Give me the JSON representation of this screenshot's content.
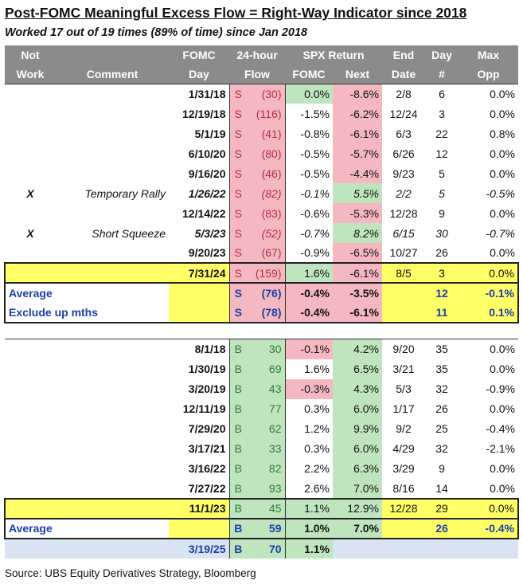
{
  "title": "Post-FOMC Meaningful Excess Flow = Right-Way Indicator since 2018",
  "subtitle": "Worked 17 out of 19 times (89% of time) since Jan 2018",
  "headers": {
    "row1": {
      "not": "Not",
      "comment": "",
      "fomc": "FOMC",
      "flow": "24-hour",
      "spx": "SPX Return",
      "end": "End",
      "day": "Day",
      "max": "Max"
    },
    "row2": {
      "not": "Work",
      "comment": "Comment",
      "fomc": "Day",
      "flow": "Flow",
      "spx_fomc": "FOMC",
      "spx_next": "Next",
      "end": "Date",
      "day": "#",
      "max": "Opp"
    }
  },
  "sell_rows": [
    {
      "not": "",
      "comment": "",
      "day": "1/31/18",
      "flag": "S",
      "flow": "(30)",
      "fomc": "0.0%",
      "next": "-8.6%",
      "end": "2/8",
      "dn": "6",
      "opp": "0.0%"
    },
    {
      "not": "",
      "comment": "",
      "day": "12/19/18",
      "flag": "S",
      "flow": "(116)",
      "fomc": "-1.5%",
      "next": "-6.2%",
      "end": "12/24",
      "dn": "3",
      "opp": "0.0%"
    },
    {
      "not": "",
      "comment": "",
      "day": "5/1/19",
      "flag": "S",
      "flow": "(41)",
      "fomc": "-0.8%",
      "next": "-6.1%",
      "end": "6/3",
      "dn": "22",
      "opp": "0.8%"
    },
    {
      "not": "",
      "comment": "",
      "day": "6/10/20",
      "flag": "S",
      "flow": "(80)",
      "fomc": "-0.5%",
      "next": "-5.7%",
      "end": "6/26",
      "dn": "12",
      "opp": "0.0%"
    },
    {
      "not": "",
      "comment": "",
      "day": "9/16/20",
      "flag": "S",
      "flow": "(46)",
      "fomc": "-0.5%",
      "next": "-4.4%",
      "end": "9/23",
      "dn": "5",
      "opp": "0.0%"
    },
    {
      "not": "X",
      "comment": "Temporary Rally",
      "day": "1/26/22",
      "flag": "S",
      "flow": "(82)",
      "fomc": "-0.1%",
      "next": "5.5%",
      "end": "2/2",
      "dn": "5",
      "opp": "-0.5%"
    },
    {
      "not": "",
      "comment": "",
      "day": "12/14/22",
      "flag": "S",
      "flow": "(83)",
      "fomc": "-0.6%",
      "next": "-5.3%",
      "end": "12/28",
      "dn": "9",
      "opp": "0.0%"
    },
    {
      "not": "X",
      "comment": "Short Squeeze",
      "day": "5/3/23",
      "flag": "S",
      "flow": "(52)",
      "fomc": "-0.7%",
      "next": "8.2%",
      "end": "6/15",
      "dn": "30",
      "opp": "-0.7%"
    },
    {
      "not": "",
      "comment": "",
      "day": "9/20/23",
      "flag": "S",
      "flow": "(67)",
      "fomc": "-0.9%",
      "next": "-6.5%",
      "end": "10/27",
      "dn": "26",
      "opp": "0.0%"
    },
    {
      "not": "",
      "comment": "",
      "day": "7/31/24",
      "flag": "S",
      "flow": "(159)",
      "fomc": "1.6%",
      "next": "-6.1%",
      "end": "8/5",
      "dn": "3",
      "opp": "0.0%"
    }
  ],
  "sell_avg": {
    "label": "Average",
    "flag": "S",
    "flow": "(76)",
    "fomc": "-0.4%",
    "next": "-3.5%",
    "dn": "12",
    "opp": "-0.1%"
  },
  "sell_excl": {
    "label": "Exclude up mths",
    "flag": "S",
    "flow": "(78)",
    "fomc": "-0.4%",
    "next": "-6.1%",
    "dn": "11",
    "opp": "0.1%"
  },
  "buy_rows": [
    {
      "day": "8/1/18",
      "flag": "B",
      "flow": "30",
      "fomc": "-0.1%",
      "next": "4.2%",
      "end": "9/20",
      "dn": "35",
      "opp": "0.0%"
    },
    {
      "day": "1/30/19",
      "flag": "B",
      "flow": "69",
      "fomc": "1.6%",
      "next": "6.5%",
      "end": "3/21",
      "dn": "35",
      "opp": "0.0%"
    },
    {
      "day": "3/20/19",
      "flag": "B",
      "flow": "43",
      "fomc": "-0.3%",
      "next": "4.3%",
      "end": "5/3",
      "dn": "32",
      "opp": "-0.9%"
    },
    {
      "day": "12/11/19",
      "flag": "B",
      "flow": "77",
      "fomc": "0.3%",
      "next": "6.0%",
      "end": "1/17",
      "dn": "26",
      "opp": "0.0%"
    },
    {
      "day": "7/29/20",
      "flag": "B",
      "flow": "62",
      "fomc": "1.2%",
      "next": "9.9%",
      "end": "9/2",
      "dn": "25",
      "opp": "-0.4%"
    },
    {
      "day": "3/17/21",
      "flag": "B",
      "flow": "33",
      "fomc": "0.3%",
      "next": "6.0%",
      "end": "4/29",
      "dn": "32",
      "opp": "-2.1%"
    },
    {
      "day": "3/16/22",
      "flag": "B",
      "flow": "82",
      "fomc": "2.2%",
      "next": "6.3%",
      "end": "3/29",
      "dn": "9",
      "opp": "0.0%"
    },
    {
      "day": "7/27/22",
      "flag": "B",
      "flow": "93",
      "fomc": "2.6%",
      "next": "7.0%",
      "end": "8/16",
      "dn": "14",
      "opp": "0.0%"
    },
    {
      "day": "11/1/23",
      "flag": "B",
      "flow": "45",
      "fomc": "1.1%",
      "next": "12.9%",
      "end": "12/28",
      "dn": "29",
      "opp": "0.0%"
    }
  ],
  "buy_avg": {
    "label": "Average",
    "flag": "B",
    "flow": "59",
    "fomc": "1.0%",
    "next": "7.0%",
    "dn": "26",
    "opp": "-0.4%"
  },
  "buy_last": {
    "day": "3/19/25",
    "flag": "B",
    "flow": "70",
    "fomc": "1.1%"
  },
  "source": "Source: UBS Equity Derivatives Strategy, Bloomberg",
  "colors": {
    "header_gray": "#8b8b8b",
    "sell_pink": "#f5b8c1",
    "buy_green": "#bfe5bf",
    "highlight_yellow": "#ffff66",
    "avg_blue": "#1a3fa8"
  }
}
